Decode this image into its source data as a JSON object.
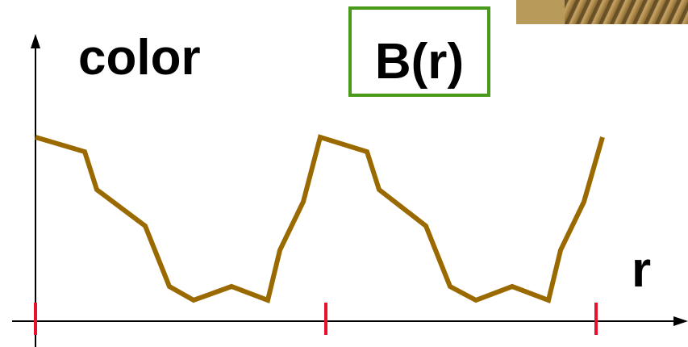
{
  "labels": {
    "y_axis": "color",
    "function": "B(r)",
    "x_axis": "r"
  }
}
